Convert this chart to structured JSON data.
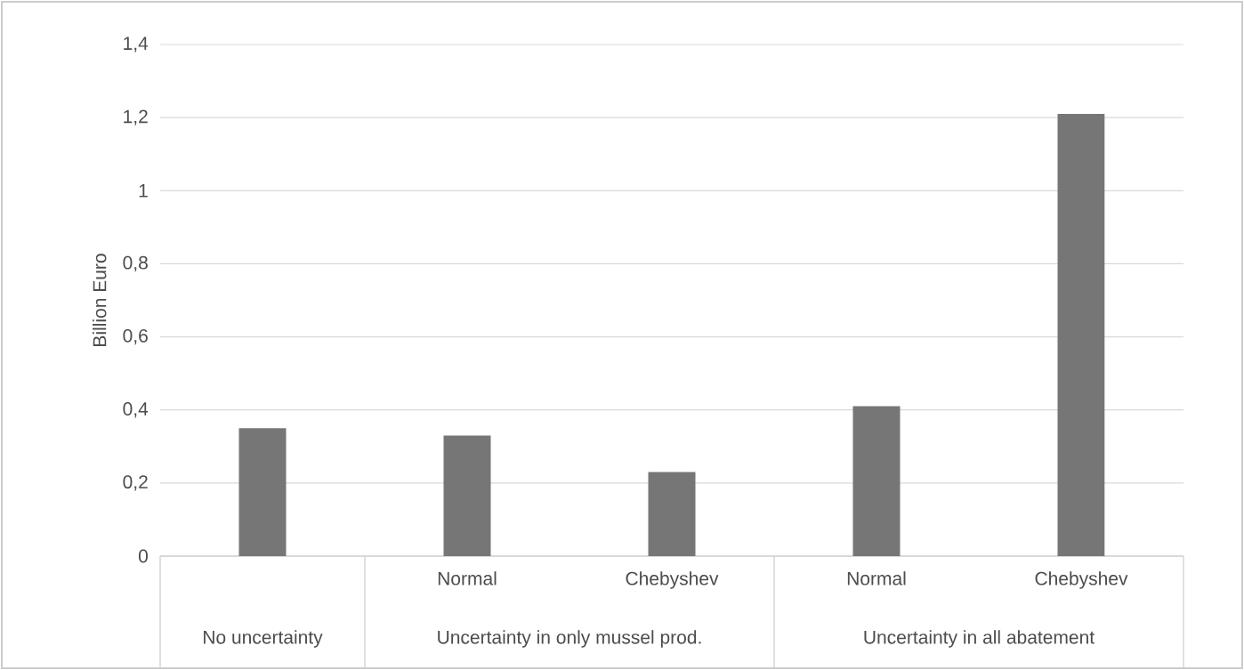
{
  "chart_data": {
    "type": "bar",
    "ylabel": "Billion Euro",
    "categories": [
      null,
      "Normal",
      "Chebyshev",
      "Normal",
      "Chebyshev"
    ],
    "values": [
      0.35,
      0.33,
      0.23,
      0.41,
      1.21
    ],
    "color": "#767676",
    "ylim": [
      0,
      1.4
    ],
    "yticks": [
      0,
      {
        "value": 0.2,
        "label": "0,2"
      },
      {
        "value": 0.4,
        "label": "0,4"
      },
      {
        "value": 0.6,
        "label": "0,6"
      },
      {
        "value": 0.8,
        "label": "0,8"
      },
      1,
      {
        "value": 1.2,
        "label": "1,2"
      },
      {
        "value": 1.4,
        "label": "1,4"
      }
    ],
    "grid": "y",
    "annotations": [
      "No uncertainty",
      "Uncertainty in only mussel prod.",
      "Uncertainty in all abatement"
    ]
  }
}
